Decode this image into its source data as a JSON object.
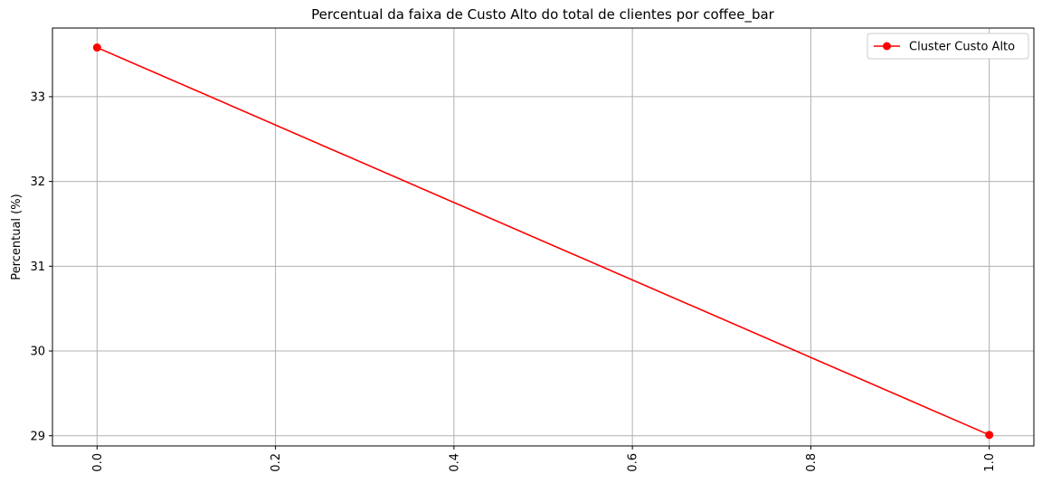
{
  "chart_data": {
    "type": "line",
    "title": "Percentual da faixa de Custo Alto do total de clientes por coffee_bar",
    "xlabel": "",
    "ylabel": "Percentual (%)",
    "xlim": [
      -0.05,
      1.05
    ],
    "ylim": [
      28.88,
      33.81
    ],
    "x_ticks": [
      0.0,
      0.2,
      0.4,
      0.6,
      0.8,
      1.0
    ],
    "x_tick_labels": [
      "0.0",
      "0.2",
      "0.4",
      "0.6",
      "0.8",
      "1.0"
    ],
    "x_tick_rotation": "vertical",
    "y_ticks": [
      29,
      30,
      31,
      32,
      33
    ],
    "y_tick_labels": [
      "29",
      "30",
      "31",
      "32",
      "33"
    ],
    "grid": true,
    "legend_position": "upper right",
    "series": [
      {
        "name": "Cluster Custo Alto",
        "color": "#ff0000",
        "marker": "circle",
        "x": [
          0.0,
          1.0
        ],
        "y": [
          33.58,
          29.01
        ]
      }
    ]
  }
}
